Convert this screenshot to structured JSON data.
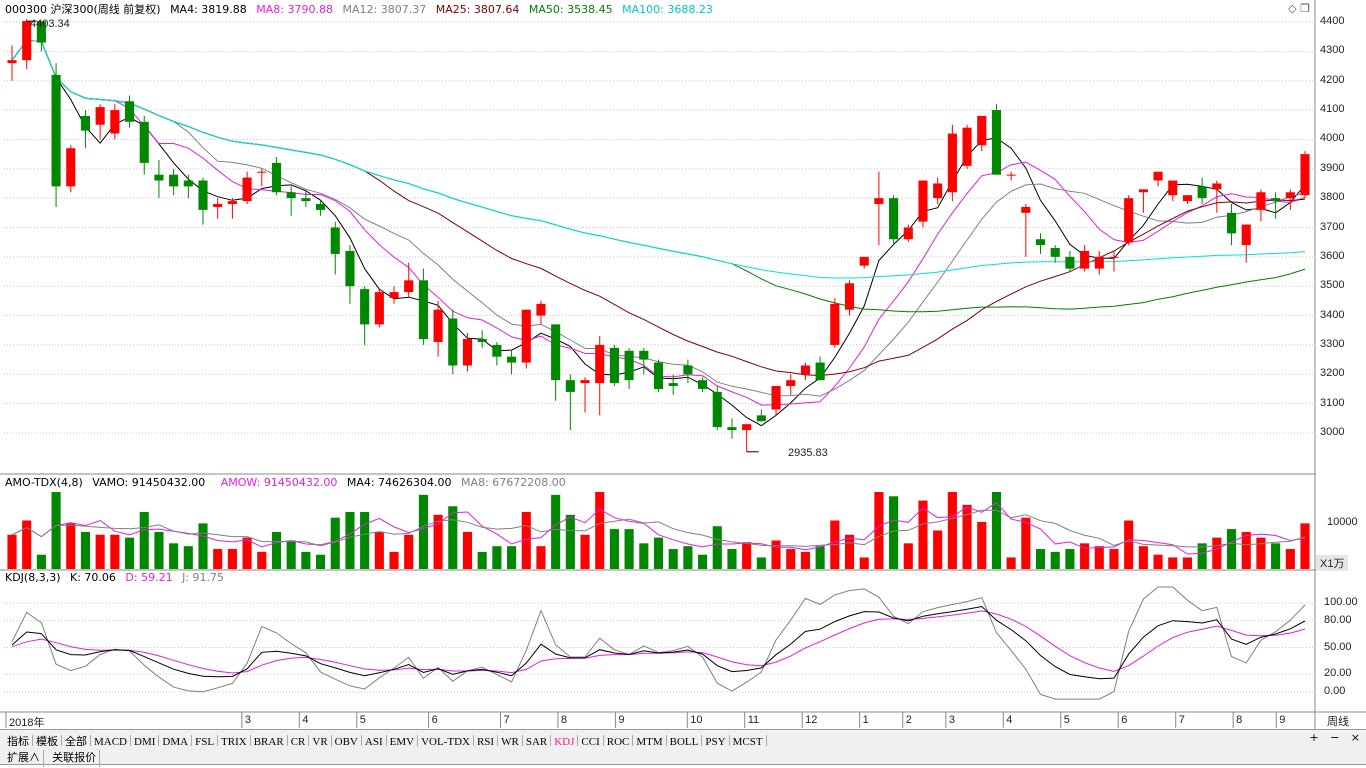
{
  "header": {
    "symbol": "000300 沪深300(周线 前复权)",
    "ma4": "MA4: 3819.88",
    "ma8": "MA8: 3790.88",
    "ma12": "MA12: 3807.37",
    "ma25": "MA25: 3807.64",
    "ma50": "MA50: 3538.45",
    "ma100": "MA100: 3688.23",
    "colors": {
      "ma4": "#000000",
      "ma8": "#e020e0",
      "ma12": "#808080",
      "ma25": "#800000",
      "ma50": "#008000",
      "ma100": "#00e0e0"
    }
  },
  "price_axis": [
    "4400",
    "4300",
    "4200",
    "4100",
    "4000",
    "3900",
    "3800",
    "3700",
    "3600",
    "3500",
    "3400",
    "3300",
    "3200",
    "3100",
    "3000"
  ],
  "annotations": {
    "high": "4403.34",
    "low": "2935.83"
  },
  "amo": {
    "title": "AMO-TDX(4,8)",
    "vamo": "VAMO: 91450432.00",
    "amow": "AMOW: 91450432.00",
    "ma4": "MA4: 74626304.00",
    "ma8": "MA8: 67672208.00",
    "axis_label": "10000",
    "unit": "X1万"
  },
  "kdj": {
    "title": "KDJ(8,3,3)",
    "k": "K: 70.06",
    "d": "D: 59.21",
    "j": "J: 91.75",
    "axis": [
      "100.00",
      "80.00",
      "50.00",
      "20.00",
      "0.00"
    ]
  },
  "months": [
    "2018年",
    "3",
    "4",
    "5",
    "6",
    "7",
    "8",
    "9",
    "10",
    "11",
    "12",
    "1",
    "2",
    "3",
    "4",
    "5",
    "6",
    "7",
    "8",
    "9"
  ],
  "period_label": "周线",
  "tabs": [
    "指标",
    "模板",
    "全部",
    "MACD",
    "DMI",
    "DMA",
    "FSL",
    "TRIX",
    "BRAR",
    "CR",
    "VR",
    "OBV",
    "ASI",
    "EMV",
    "VOL-TDX",
    "RSI",
    "WR",
    "SAR",
    "KDJ",
    "CCI",
    "ROC",
    "MTM",
    "BOLL",
    "PSY",
    "MCST"
  ],
  "active_tab": "KDJ",
  "bottom_tabs": [
    "扩展∧",
    "关联报价"
  ],
  "zoom_controls": [
    "+",
    "−",
    "×"
  ],
  "chart_data": {
    "type": "candlestick",
    "weekly_ohlc": [
      [
        4260,
        4320,
        4200,
        4270
      ],
      [
        4270,
        4410,
        4240,
        4403
      ],
      [
        4403,
        4350,
        4300,
        4330
      ],
      [
        4220,
        4260,
        3770,
        3840
      ],
      [
        3840,
        3980,
        3820,
        3970
      ],
      [
        4080,
        4100,
        3970,
        4030
      ],
      [
        4050,
        4120,
        4000,
        4110
      ],
      [
        4020,
        4120,
        4000,
        4100
      ],
      [
        4130,
        4150,
        4040,
        4060
      ],
      [
        4060,
        4080,
        3880,
        3920
      ],
      [
        3880,
        3930,
        3800,
        3860
      ],
      [
        3880,
        3900,
        3810,
        3840
      ],
      [
        3860,
        3880,
        3800,
        3840
      ],
      [
        3860,
        3870,
        3710,
        3760
      ],
      [
        3770,
        3800,
        3730,
        3780
      ],
      [
        3780,
        3800,
        3730,
        3790
      ],
      [
        3790,
        3890,
        3780,
        3870
      ],
      [
        3890,
        3900,
        3840,
        3890
      ],
      [
        3920,
        3940,
        3810,
        3820
      ],
      [
        3820,
        3840,
        3740,
        3800
      ],
      [
        3800,
        3830,
        3770,
        3790
      ],
      [
        3780,
        3790,
        3740,
        3760
      ],
      [
        3700,
        3720,
        3540,
        3610
      ],
      [
        3620,
        3640,
        3440,
        3500
      ],
      [
        3490,
        3500,
        3300,
        3370
      ],
      [
        3370,
        3490,
        3360,
        3480
      ],
      [
        3460,
        3500,
        3440,
        3480
      ],
      [
        3480,
        3580,
        3460,
        3520
      ],
      [
        3520,
        3560,
        3300,
        3320
      ],
      [
        3310,
        3450,
        3260,
        3420
      ],
      [
        3390,
        3420,
        3200,
        3230
      ],
      [
        3230,
        3340,
        3210,
        3320
      ],
      [
        3320,
        3350,
        3290,
        3310
      ],
      [
        3300,
        3310,
        3230,
        3260
      ],
      [
        3260,
        3280,
        3200,
        3240
      ],
      [
        3240,
        3420,
        3220,
        3420
      ],
      [
        3400,
        3450,
        3370,
        3440
      ],
      [
        3370,
        3370,
        3110,
        3180
      ],
      [
        3180,
        3200,
        3010,
        3140
      ],
      [
        3170,
        3190,
        3070,
        3180
      ],
      [
        3170,
        3330,
        3060,
        3300
      ],
      [
        3290,
        3300,
        3160,
        3170
      ],
      [
        3280,
        3290,
        3150,
        3180
      ],
      [
        3280,
        3290,
        3200,
        3250
      ],
      [
        3240,
        3250,
        3140,
        3150
      ],
      [
        3170,
        3200,
        3130,
        3160
      ],
      [
        3230,
        3250,
        3170,
        3200
      ],
      [
        3180,
        3190,
        3140,
        3150
      ],
      [
        3140,
        3160,
        3010,
        3020
      ],
      [
        3020,
        3050,
        2980,
        3010
      ],
      [
        3010,
        3030,
        2936,
        3030
      ],
      [
        3060,
        3080,
        3040,
        3040
      ],
      [
        3080,
        3160,
        3060,
        3160
      ],
      [
        3160,
        3200,
        3130,
        3180
      ],
      [
        3200,
        3240,
        3180,
        3230
      ],
      [
        3240,
        3260,
        3180,
        3180
      ],
      [
        3300,
        3460,
        3290,
        3440
      ],
      [
        3420,
        3520,
        3400,
        3510
      ],
      [
        3570,
        3600,
        3560,
        3600
      ],
      [
        3780,
        3890,
        3640,
        3800
      ],
      [
        3800,
        3810,
        3640,
        3660
      ],
      [
        3660,
        3710,
        3650,
        3700
      ],
      [
        3720,
        3860,
        3700,
        3860
      ],
      [
        3800,
        3870,
        3780,
        3850
      ],
      [
        3820,
        4050,
        3790,
        4020
      ],
      [
        3910,
        4050,
        3900,
        4040
      ],
      [
        3980,
        4070,
        3960,
        4080
      ],
      [
        4100,
        4120,
        3880,
        3880
      ],
      [
        3880,
        3890,
        3860,
        3880
      ],
      [
        3750,
        3780,
        3600,
        3770
      ],
      [
        3660,
        3680,
        3610,
        3640
      ],
      [
        3630,
        3640,
        3580,
        3600
      ],
      [
        3600,
        3620,
        3550,
        3560
      ],
      [
        3560,
        3640,
        3550,
        3620
      ],
      [
        3560,
        3620,
        3540,
        3600
      ],
      [
        3600,
        3620,
        3550,
        3600
      ],
      [
        3650,
        3810,
        3640,
        3800
      ],
      [
        3820,
        3830,
        3750,
        3830
      ],
      [
        3860,
        3890,
        3840,
        3890
      ],
      [
        3810,
        3830,
        3790,
        3860
      ],
      [
        3790,
        3810,
        3780,
        3810
      ],
      [
        3840,
        3870,
        3780,
        3800
      ],
      [
        3830,
        3860,
        3750,
        3850
      ],
      [
        3750,
        3780,
        3640,
        3680
      ],
      [
        3640,
        3710,
        3580,
        3710
      ],
      [
        3760,
        3830,
        3720,
        3820
      ],
      [
        3800,
        3820,
        3730,
        3790
      ],
      [
        3800,
        3830,
        3760,
        3820
      ],
      [
        3810,
        3960,
        3800,
        3950
      ]
    ]
  }
}
